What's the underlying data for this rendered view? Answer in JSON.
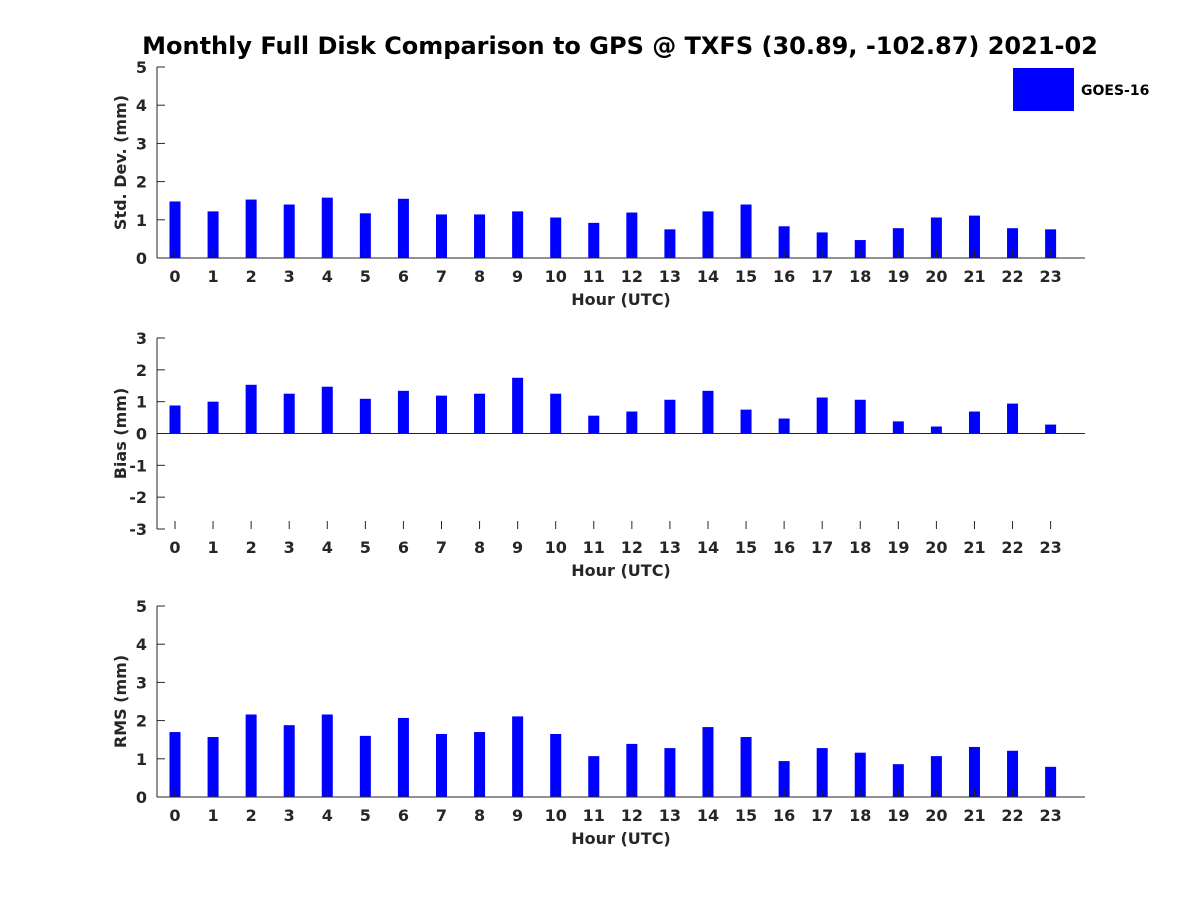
{
  "title": "Monthly Full Disk Comparison to GPS @ TXFS (30.89, -102.87) 2021-02",
  "legend": {
    "label": "GOES-16",
    "color": "#0000ff"
  },
  "chart_data": [
    {
      "type": "bar",
      "ylabel": "Std. Dev. (mm)",
      "xlabel": "Hour (UTC)",
      "ylim": [
        0,
        5
      ],
      "yticks": [
        0,
        1,
        2,
        3,
        4,
        5
      ],
      "categories": [
        "0",
        "1",
        "2",
        "3",
        "4",
        "5",
        "6",
        "7",
        "8",
        "9",
        "10",
        "11",
        "12",
        "13",
        "14",
        "15",
        "16",
        "17",
        "18",
        "19",
        "20",
        "21",
        "22",
        "23"
      ],
      "series": [
        {
          "name": "GOES-16",
          "color": "#0000ff",
          "values": [
            1.48,
            1.22,
            1.53,
            1.4,
            1.58,
            1.17,
            1.55,
            1.14,
            1.14,
            1.22,
            1.06,
            0.92,
            1.19,
            0.75,
            1.22,
            1.4,
            0.83,
            0.67,
            0.47,
            0.78,
            1.06,
            1.11,
            0.78,
            0.75
          ]
        }
      ]
    },
    {
      "type": "bar",
      "ylabel": "Bias (mm)",
      "xlabel": "Hour (UTC)",
      "ylim": [
        -3,
        3
      ],
      "yticks": [
        -3,
        -2,
        -1,
        0,
        1,
        2,
        3
      ],
      "categories": [
        "0",
        "1",
        "2",
        "3",
        "4",
        "5",
        "6",
        "7",
        "8",
        "9",
        "10",
        "11",
        "12",
        "13",
        "14",
        "15",
        "16",
        "17",
        "18",
        "19",
        "20",
        "21",
        "22",
        "23"
      ],
      "series": [
        {
          "name": "GOES-16",
          "color": "#0000ff",
          "values": [
            0.88,
            1.0,
            1.53,
            1.25,
            1.47,
            1.09,
            1.34,
            1.19,
            1.25,
            1.75,
            1.25,
            0.56,
            0.69,
            1.06,
            1.34,
            0.75,
            0.47,
            1.13,
            1.06,
            0.38,
            0.22,
            0.69,
            0.94,
            0.28
          ]
        }
      ]
    },
    {
      "type": "bar",
      "ylabel": "RMS (mm)",
      "xlabel": "Hour (UTC)",
      "ylim": [
        0,
        5
      ],
      "yticks": [
        0,
        1,
        2,
        3,
        4,
        5
      ],
      "categories": [
        "0",
        "1",
        "2",
        "3",
        "4",
        "5",
        "6",
        "7",
        "8",
        "9",
        "10",
        "11",
        "12",
        "13",
        "14",
        "15",
        "16",
        "17",
        "18",
        "19",
        "20",
        "21",
        "22",
        "23"
      ],
      "series": [
        {
          "name": "GOES-16",
          "color": "#0000ff",
          "values": [
            1.7,
            1.57,
            2.16,
            1.88,
            2.16,
            1.6,
            2.07,
            1.65,
            1.7,
            2.11,
            1.65,
            1.07,
            1.39,
            1.28,
            1.83,
            1.57,
            0.94,
            1.28,
            1.16,
            0.86,
            1.07,
            1.31,
            1.21,
            0.79
          ]
        }
      ]
    }
  ]
}
